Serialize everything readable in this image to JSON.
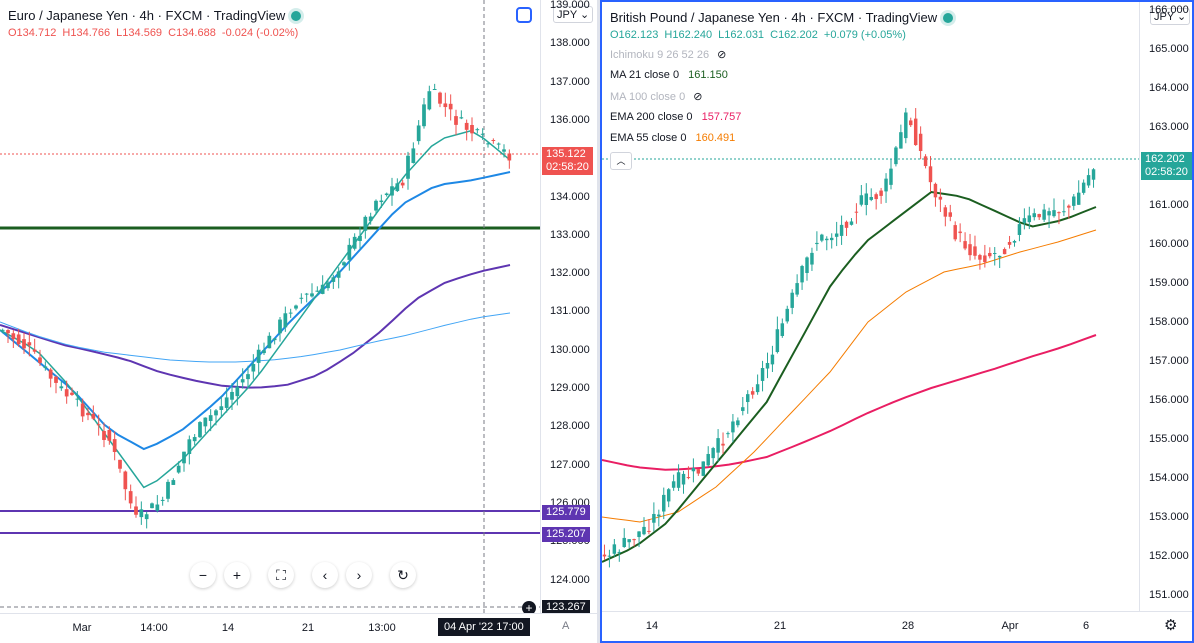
{
  "left": {
    "title": "Euro / Japanese Yen · 4h · FXCM · TradingView",
    "ohlc": {
      "o": "O134.712",
      "h": "H134.766",
      "l": "L134.569",
      "c": "C134.688",
      "chg": "-0.024 (-0.02%)"
    },
    "currency": "JPY",
    "price_ticks": [
      "139.000",
      "138.000",
      "137.000",
      "136.000",
      "135.000",
      "134.000",
      "133.000",
      "132.000",
      "131.000",
      "130.000",
      "129.000",
      "128.000",
      "127.000",
      "126.000",
      "125.000",
      "124.000"
    ],
    "date_ticks": [
      "Mar",
      "14:00",
      "14",
      "21",
      "13:00",
      "25"
    ],
    "price_tag": {
      "price": "135.122",
      "time": "02:58:20"
    },
    "level_tags": [
      "125.779",
      "125.207"
    ],
    "crosshair_price": "123.267",
    "date_flag": "04 Apr '22  17:00",
    "nav": [
      "−",
      "+",
      "⛶",
      "‹",
      "›",
      "↻"
    ],
    "auto_label": "A"
  },
  "right": {
    "title": "British Pound / Japanese Yen · 4h · FXCM · TradingView",
    "ohlc": {
      "o": "O162.123",
      "h": "H162.240",
      "l": "L162.031",
      "c": "C162.202",
      "chg": "+0.079 (+0.05%)"
    },
    "currency": "JPY",
    "indicators": [
      {
        "name": "Ichimoku 9 26 52 26",
        "value": "",
        "color": "#b2b5be",
        "hidden": true
      },
      {
        "name": "MA 21 close 0",
        "value": "161.150",
        "color": "#1b5e20",
        "hidden": false
      },
      {
        "name": "MA 100 close 0",
        "value": "",
        "color": "#b2b5be",
        "hidden": true
      },
      {
        "name": "EMA 200 close 0",
        "value": "157.757",
        "color": "#e91e63",
        "hidden": false
      },
      {
        "name": "EMA 55 close 0",
        "value": "160.491",
        "color": "#f57c00",
        "hidden": false
      }
    ],
    "price_ticks": [
      "166.000",
      "165.000",
      "164.000",
      "163.000",
      "161.000",
      "160.000",
      "159.000",
      "158.000",
      "157.000",
      "156.000",
      "155.000",
      "154.000",
      "153.000",
      "152.000",
      "151.000"
    ],
    "date_ticks": [
      "14",
      "21",
      "28",
      "Apr",
      "6"
    ],
    "price_tag": {
      "price": "162.202",
      "time": "02:58:20"
    }
  },
  "colors": {
    "up": "#26a69a",
    "down": "#ef5350",
    "accent": "#2962ff"
  }
}
